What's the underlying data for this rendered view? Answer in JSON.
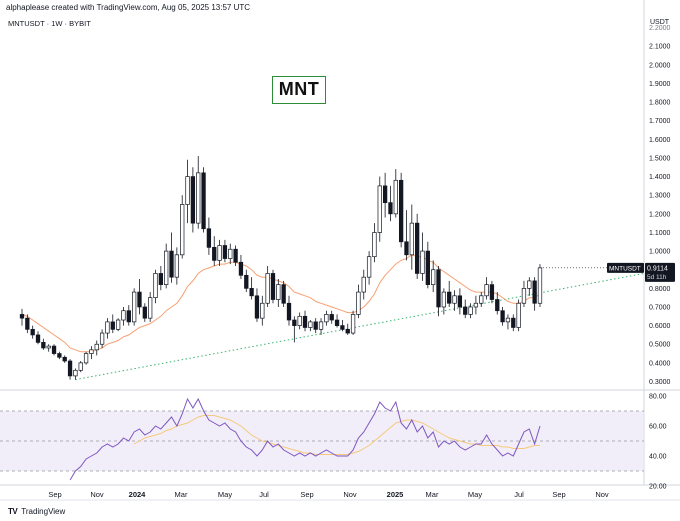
{
  "header": {
    "attribution": "alphaplease created with TradingView.com, Aug 05, 2025 13:57 UTC"
  },
  "symbol_label": "MNTUSDT · 1W · BYBIT",
  "badge_text": "MNT",
  "price_axis": {
    "unit": "USDT",
    "ticks": [
      "2.1000",
      "2.0000",
      "1.9000",
      "1.8000",
      "1.7000",
      "1.6000",
      "1.5000",
      "1.4000",
      "1.3000",
      "1.2000",
      "1.1000",
      "1.0000",
      "0.9000",
      "0.8000",
      "0.7000",
      "0.6000",
      "0.5000",
      "0.4000",
      "0.3000"
    ],
    "top_partial": "2.2000"
  },
  "price_tag": {
    "symbol": "MNTUSDT",
    "price": "0.9114",
    "countdown": "5d 11h"
  },
  "rsi_axis": {
    "ticks": [
      "80.00",
      "60.00",
      "40.00",
      "20.00"
    ]
  },
  "time_axis": [
    "Sep",
    "Nov",
    "2024",
    "Mar",
    "May",
    "Jul",
    "Sep",
    "Nov",
    "2025",
    "Mar",
    "May",
    "Jul",
    "Sep",
    "Nov"
  ],
  "footer": {
    "brand": "TradingView"
  },
  "colors": {
    "up": "#ffffff",
    "down": "#131722",
    "ema": "#f7a072",
    "trend": "#3cb371",
    "rsi": "#7e57c2",
    "rsi_ma": "#f5c97b",
    "band": "#ede7f6",
    "accent": "#2e8b3a"
  },
  "chart_data": {
    "type": "candlestick",
    "ylim": [
      0.28,
      2.22
    ],
    "rsi_ylim": [
      18,
      82
    ],
    "candles": [
      {
        "o": 0.66,
        "h": 0.69,
        "l": 0.6,
        "c": 0.64
      },
      {
        "o": 0.64,
        "h": 0.66,
        "l": 0.56,
        "c": 0.58
      },
      {
        "o": 0.58,
        "h": 0.6,
        "l": 0.53,
        "c": 0.55
      },
      {
        "o": 0.55,
        "h": 0.57,
        "l": 0.5,
        "c": 0.51
      },
      {
        "o": 0.51,
        "h": 0.53,
        "l": 0.47,
        "c": 0.48
      },
      {
        "o": 0.48,
        "h": 0.5,
        "l": 0.46,
        "c": 0.49
      },
      {
        "o": 0.49,
        "h": 0.5,
        "l": 0.44,
        "c": 0.45
      },
      {
        "o": 0.45,
        "h": 0.46,
        "l": 0.42,
        "c": 0.43
      },
      {
        "o": 0.43,
        "h": 0.44,
        "l": 0.4,
        "c": 0.41
      },
      {
        "o": 0.41,
        "h": 0.42,
        "l": 0.31,
        "c": 0.33
      },
      {
        "o": 0.33,
        "h": 0.37,
        "l": 0.31,
        "c": 0.36
      },
      {
        "o": 0.36,
        "h": 0.41,
        "l": 0.35,
        "c": 0.4
      },
      {
        "o": 0.4,
        "h": 0.46,
        "l": 0.39,
        "c": 0.45
      },
      {
        "o": 0.45,
        "h": 0.49,
        "l": 0.42,
        "c": 0.47
      },
      {
        "o": 0.47,
        "h": 0.52,
        "l": 0.44,
        "c": 0.5
      },
      {
        "o": 0.5,
        "h": 0.58,
        "l": 0.48,
        "c": 0.56
      },
      {
        "o": 0.56,
        "h": 0.64,
        "l": 0.53,
        "c": 0.62
      },
      {
        "o": 0.62,
        "h": 0.66,
        "l": 0.56,
        "c": 0.58
      },
      {
        "o": 0.58,
        "h": 0.64,
        "l": 0.57,
        "c": 0.63
      },
      {
        "o": 0.63,
        "h": 0.7,
        "l": 0.6,
        "c": 0.68
      },
      {
        "o": 0.68,
        "h": 0.71,
        "l": 0.6,
        "c": 0.62
      },
      {
        "o": 0.62,
        "h": 0.8,
        "l": 0.6,
        "c": 0.78
      },
      {
        "o": 0.78,
        "h": 0.85,
        "l": 0.66,
        "c": 0.7
      },
      {
        "o": 0.7,
        "h": 0.72,
        "l": 0.62,
        "c": 0.64
      },
      {
        "o": 0.64,
        "h": 0.78,
        "l": 0.62,
        "c": 0.75
      },
      {
        "o": 0.75,
        "h": 0.9,
        "l": 0.72,
        "c": 0.88
      },
      {
        "o": 0.88,
        "h": 0.92,
        "l": 0.79,
        "c": 0.82
      },
      {
        "o": 0.82,
        "h": 1.04,
        "l": 0.8,
        "c": 1.0
      },
      {
        "o": 1.0,
        "h": 1.1,
        "l": 0.83,
        "c": 0.86
      },
      {
        "o": 0.86,
        "h": 1.02,
        "l": 0.82,
        "c": 0.98
      },
      {
        "o": 0.98,
        "h": 1.3,
        "l": 0.96,
        "c": 1.25
      },
      {
        "o": 1.25,
        "h": 1.49,
        "l": 1.15,
        "c": 1.4
      },
      {
        "o": 1.4,
        "h": 1.45,
        "l": 1.1,
        "c": 1.15
      },
      {
        "o": 1.15,
        "h": 1.51,
        "l": 1.12,
        "c": 1.42
      },
      {
        "o": 1.42,
        "h": 1.45,
        "l": 1.1,
        "c": 1.12
      },
      {
        "o": 1.12,
        "h": 1.18,
        "l": 0.98,
        "c": 1.02
      },
      {
        "o": 1.02,
        "h": 1.08,
        "l": 0.92,
        "c": 0.95
      },
      {
        "o": 0.95,
        "h": 1.06,
        "l": 0.92,
        "c": 1.03
      },
      {
        "o": 1.03,
        "h": 1.06,
        "l": 0.94,
        "c": 0.96
      },
      {
        "o": 0.96,
        "h": 1.04,
        "l": 0.93,
        "c": 1.01
      },
      {
        "o": 1.01,
        "h": 1.03,
        "l": 0.92,
        "c": 0.94
      },
      {
        "o": 0.94,
        "h": 0.98,
        "l": 0.85,
        "c": 0.87
      },
      {
        "o": 0.87,
        "h": 0.9,
        "l": 0.78,
        "c": 0.8
      },
      {
        "o": 0.8,
        "h": 0.86,
        "l": 0.74,
        "c": 0.76
      },
      {
        "o": 0.76,
        "h": 0.8,
        "l": 0.62,
        "c": 0.64
      },
      {
        "o": 0.64,
        "h": 0.76,
        "l": 0.6,
        "c": 0.72
      },
      {
        "o": 0.72,
        "h": 0.92,
        "l": 0.7,
        "c": 0.88
      },
      {
        "o": 0.88,
        "h": 0.9,
        "l": 0.72,
        "c": 0.74
      },
      {
        "o": 0.74,
        "h": 0.85,
        "l": 0.7,
        "c": 0.82
      },
      {
        "o": 0.82,
        "h": 0.84,
        "l": 0.7,
        "c": 0.72
      },
      {
        "o": 0.72,
        "h": 0.76,
        "l": 0.6,
        "c": 0.63
      },
      {
        "o": 0.63,
        "h": 0.65,
        "l": 0.51,
        "c": 0.6
      },
      {
        "o": 0.6,
        "h": 0.67,
        "l": 0.58,
        "c": 0.65
      },
      {
        "o": 0.65,
        "h": 0.68,
        "l": 0.57,
        "c": 0.59
      },
      {
        "o": 0.59,
        "h": 0.63,
        "l": 0.57,
        "c": 0.62
      },
      {
        "o": 0.62,
        "h": 0.64,
        "l": 0.56,
        "c": 0.58
      },
      {
        "o": 0.58,
        "h": 0.64,
        "l": 0.55,
        "c": 0.62
      },
      {
        "o": 0.62,
        "h": 0.68,
        "l": 0.6,
        "c": 0.66
      },
      {
        "o": 0.66,
        "h": 0.68,
        "l": 0.61,
        "c": 0.63
      },
      {
        "o": 0.63,
        "h": 0.66,
        "l": 0.59,
        "c": 0.6
      },
      {
        "o": 0.6,
        "h": 0.63,
        "l": 0.57,
        "c": 0.58
      },
      {
        "o": 0.58,
        "h": 0.61,
        "l": 0.55,
        "c": 0.56
      },
      {
        "o": 0.56,
        "h": 0.68,
        "l": 0.55,
        "c": 0.66
      },
      {
        "o": 0.66,
        "h": 0.82,
        "l": 0.64,
        "c": 0.78
      },
      {
        "o": 0.78,
        "h": 0.9,
        "l": 0.74,
        "c": 0.86
      },
      {
        "o": 0.86,
        "h": 1.0,
        "l": 0.82,
        "c": 0.97
      },
      {
        "o": 0.97,
        "h": 1.15,
        "l": 0.94,
        "c": 1.1
      },
      {
        "o": 1.1,
        "h": 1.4,
        "l": 1.05,
        "c": 1.35
      },
      {
        "o": 1.35,
        "h": 1.42,
        "l": 1.18,
        "c": 1.26
      },
      {
        "o": 1.26,
        "h": 1.35,
        "l": 1.16,
        "c": 1.2
      },
      {
        "o": 1.2,
        "h": 1.44,
        "l": 1.18,
        "c": 1.38
      },
      {
        "o": 1.38,
        "h": 1.42,
        "l": 1.02,
        "c": 1.05
      },
      {
        "o": 1.05,
        "h": 1.22,
        "l": 0.95,
        "c": 0.98
      },
      {
        "o": 0.98,
        "h": 1.25,
        "l": 0.9,
        "c": 1.15
      },
      {
        "o": 1.15,
        "h": 1.2,
        "l": 0.85,
        "c": 0.88
      },
      {
        "o": 0.88,
        "h": 1.1,
        "l": 0.84,
        "c": 1.0
      },
      {
        "o": 1.0,
        "h": 1.05,
        "l": 0.8,
        "c": 0.82
      },
      {
        "o": 0.82,
        "h": 0.95,
        "l": 0.78,
        "c": 0.9
      },
      {
        "o": 0.9,
        "h": 0.92,
        "l": 0.65,
        "c": 0.7
      },
      {
        "o": 0.7,
        "h": 0.8,
        "l": 0.66,
        "c": 0.78
      },
      {
        "o": 0.78,
        "h": 0.84,
        "l": 0.7,
        "c": 0.72
      },
      {
        "o": 0.72,
        "h": 0.79,
        "l": 0.68,
        "c": 0.76
      },
      {
        "o": 0.76,
        "h": 0.8,
        "l": 0.66,
        "c": 0.7
      },
      {
        "o": 0.7,
        "h": 0.74,
        "l": 0.64,
        "c": 0.66
      },
      {
        "o": 0.66,
        "h": 0.72,
        "l": 0.64,
        "c": 0.7
      },
      {
        "o": 0.7,
        "h": 0.76,
        "l": 0.66,
        "c": 0.72
      },
      {
        "o": 0.72,
        "h": 0.78,
        "l": 0.7,
        "c": 0.76
      },
      {
        "o": 0.76,
        "h": 0.86,
        "l": 0.74,
        "c": 0.82
      },
      {
        "o": 0.82,
        "h": 0.84,
        "l": 0.72,
        "c": 0.74
      },
      {
        "o": 0.74,
        "h": 0.78,
        "l": 0.66,
        "c": 0.68
      },
      {
        "o": 0.68,
        "h": 0.7,
        "l": 0.6,
        "c": 0.62
      },
      {
        "o": 0.62,
        "h": 0.66,
        "l": 0.58,
        "c": 0.64
      },
      {
        "o": 0.64,
        "h": 0.66,
        "l": 0.57,
        "c": 0.59
      },
      {
        "o": 0.59,
        "h": 0.74,
        "l": 0.57,
        "c": 0.72
      },
      {
        "o": 0.72,
        "h": 0.84,
        "l": 0.7,
        "c": 0.8
      },
      {
        "o": 0.8,
        "h": 0.86,
        "l": 0.76,
        "c": 0.84
      },
      {
        "o": 0.84,
        "h": 0.86,
        "l": 0.68,
        "c": 0.72
      },
      {
        "o": 0.72,
        "h": 0.93,
        "l": 0.7,
        "c": 0.91
      }
    ],
    "ema": [
      0.66,
      0.65,
      0.63,
      0.61,
      0.59,
      0.57,
      0.55,
      0.53,
      0.51,
      0.48,
      0.47,
      0.46,
      0.46,
      0.46,
      0.47,
      0.48,
      0.5,
      0.51,
      0.52,
      0.54,
      0.55,
      0.57,
      0.59,
      0.6,
      0.61,
      0.63,
      0.65,
      0.68,
      0.7,
      0.72,
      0.76,
      0.81,
      0.84,
      0.88,
      0.9,
      0.91,
      0.92,
      0.93,
      0.93,
      0.94,
      0.94,
      0.93,
      0.92,
      0.9,
      0.87,
      0.86,
      0.86,
      0.85,
      0.84,
      0.83,
      0.81,
      0.78,
      0.77,
      0.76,
      0.75,
      0.73,
      0.72,
      0.71,
      0.7,
      0.69,
      0.68,
      0.67,
      0.67,
      0.68,
      0.7,
      0.73,
      0.77,
      0.83,
      0.87,
      0.9,
      0.93,
      0.95,
      0.96,
      0.98,
      0.97,
      0.97,
      0.95,
      0.94,
      0.91,
      0.89,
      0.87,
      0.85,
      0.83,
      0.81,
      0.79,
      0.78,
      0.78,
      0.78,
      0.78,
      0.77,
      0.75,
      0.73,
      0.72,
      0.72,
      0.73,
      0.75,
      0.75,
      0.77
    ],
    "rsi": [
      null,
      null,
      null,
      null,
      null,
      null,
      null,
      null,
      null,
      24,
      30,
      33,
      38,
      40,
      42,
      46,
      48,
      46,
      48,
      52,
      50,
      56,
      58,
      54,
      56,
      60,
      58,
      62,
      66,
      60,
      68,
      78,
      72,
      78,
      70,
      64,
      62,
      60,
      62,
      58,
      56,
      50,
      46,
      44,
      40,
      44,
      50,
      46,
      48,
      44,
      42,
      40,
      42,
      40,
      42,
      40,
      42,
      44,
      42,
      40,
      40,
      40,
      44,
      52,
      56,
      62,
      68,
      76,
      72,
      70,
      76,
      62,
      58,
      64,
      56,
      60,
      52,
      56,
      46,
      50,
      48,
      50,
      46,
      44,
      46,
      48,
      48,
      54,
      48,
      44,
      40,
      42,
      40,
      48,
      56,
      58,
      48,
      60
    ],
    "rsi_ma": [
      null,
      null,
      null,
      null,
      null,
      null,
      null,
      null,
      null,
      null,
      null,
      null,
      null,
      null,
      null,
      null,
      null,
      null,
      null,
      null,
      null,
      48,
      50,
      52,
      53,
      54,
      55,
      57,
      58,
      60,
      61,
      62,
      64,
      66,
      67,
      67,
      67,
      66,
      65,
      64,
      62,
      60,
      57,
      54,
      52,
      50,
      49,
      48,
      47,
      46,
      45,
      44,
      43,
      42,
      42,
      41,
      41,
      41,
      41,
      41,
      41,
      41,
      42,
      43,
      45,
      47,
      50,
      53,
      56,
      59,
      62,
      63,
      64,
      64,
      63,
      62,
      60,
      58,
      56,
      54,
      52,
      51,
      50,
      49,
      48,
      48,
      47,
      47,
      47,
      47,
      46,
      46,
      45,
      45,
      45,
      46,
      47,
      47
    ]
  }
}
